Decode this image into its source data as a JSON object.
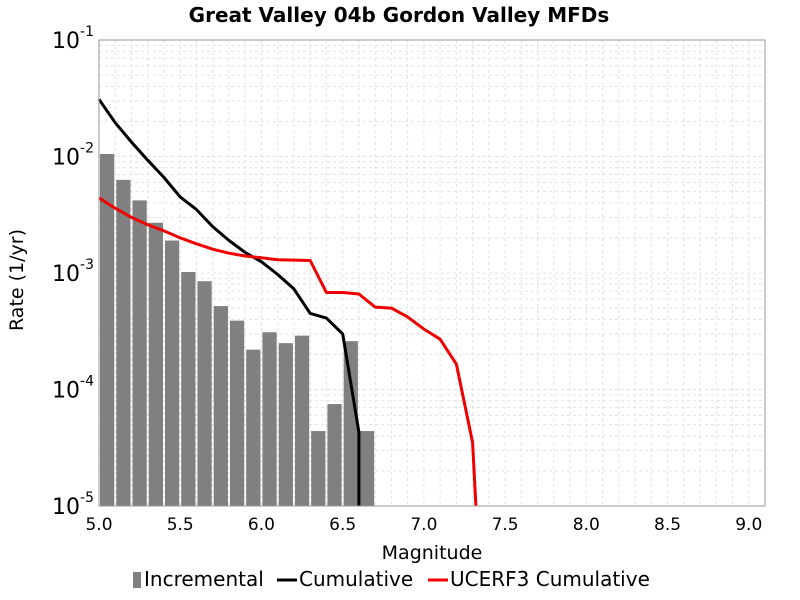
{
  "chart_data": {
    "type": "bar",
    "title": "Great Valley 04b Gordon Valley MFDs",
    "xlabel": "Magnitude",
    "ylabel": "Rate (1/yr)",
    "xlim": [
      5.0,
      9.1
    ],
    "ylim": [
      1e-05,
      0.1
    ],
    "yscale": "log",
    "grid": true,
    "legend_position": "bottom",
    "x_ticks": [
      "5.0",
      "5.5",
      "6.0",
      "6.5",
      "7.0",
      "7.5",
      "8.0",
      "8.5",
      "9.0"
    ],
    "y_ticks": [
      {
        "base": "10",
        "exp": "-5",
        "value": 1e-05
      },
      {
        "base": "10",
        "exp": "-4",
        "value": 0.0001
      },
      {
        "base": "10",
        "exp": "-3",
        "value": 0.001
      },
      {
        "base": "10",
        "exp": "-2",
        "value": 0.01
      },
      {
        "base": "10",
        "exp": "-1",
        "value": 0.1
      }
    ],
    "series": [
      {
        "name": "Incremental",
        "type": "bar",
        "color": "#808080",
        "bar_width": 0.1,
        "x": [
          5.05,
          5.15,
          5.25,
          5.35,
          5.45,
          5.55,
          5.65,
          5.75,
          5.85,
          5.95,
          6.05,
          6.15,
          6.25,
          6.35,
          6.45,
          6.55,
          6.65
        ],
        "y": [
          0.0105,
          0.0063,
          0.0042,
          0.0027,
          0.0019,
          0.00102,
          0.00085,
          0.00052,
          0.00039,
          0.00022,
          0.00031,
          0.00025,
          0.00029,
          4.4e-05,
          7.5e-05,
          0.00026,
          4.4e-05
        ]
      },
      {
        "name": "Cumulative",
        "type": "line",
        "color": "#000000",
        "x": [
          5.0,
          5.1,
          5.2,
          5.3,
          5.4,
          5.5,
          5.6,
          5.7,
          5.8,
          5.9,
          6.0,
          6.1,
          6.2,
          6.3,
          6.4,
          6.5,
          6.6,
          6.6
        ],
        "y": [
          0.031,
          0.0195,
          0.0133,
          0.0093,
          0.0066,
          0.0045,
          0.0035,
          0.0025,
          0.0019,
          0.0015,
          0.00125,
          0.00097,
          0.00073,
          0.00045,
          0.00041,
          0.0003,
          4.3e-05,
          1e-05
        ]
      },
      {
        "name": "UCERF3 Cumulative",
        "type": "line",
        "color": "#ee0000",
        "x": [
          5.0,
          5.1,
          5.2,
          5.3,
          5.4,
          5.5,
          5.6,
          5.7,
          5.8,
          5.9,
          6.0,
          6.1,
          6.2,
          6.3,
          6.4,
          6.5,
          6.6,
          6.7,
          6.8,
          6.9,
          7.0,
          7.1,
          7.2,
          7.3,
          7.32
        ],
        "y": [
          0.0044,
          0.0036,
          0.003,
          0.0026,
          0.0023,
          0.002,
          0.00178,
          0.0016,
          0.00148,
          0.0014,
          0.00135,
          0.0013,
          0.00129,
          0.00128,
          0.00068,
          0.00068,
          0.00066,
          0.00051,
          0.0005,
          0.00042,
          0.00033,
          0.00027,
          0.000165,
          3.5e-05,
          1e-05
        ]
      }
    ]
  }
}
